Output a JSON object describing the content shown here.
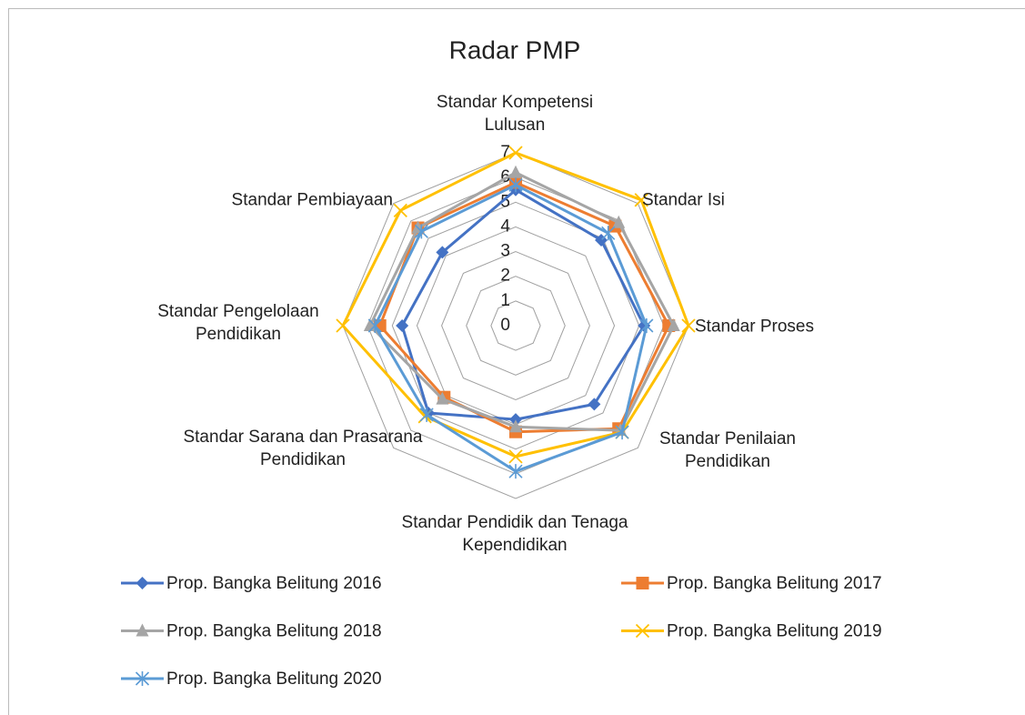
{
  "chart_data": {
    "type": "radar",
    "title": "Radar PMP",
    "categories": [
      "Standar Kompetensi Lulusan",
      "Standar Isi",
      "Standar Proses",
      "Standar Penilaian Pendidikan",
      "Standar Pendidik dan Tenaga Kependidikan",
      "Standar Sarana dan Prasarana Pendidikan",
      "Standar Pengelolaan Pendidikan",
      "Standar Pembiayaan"
    ],
    "series": [
      {
        "name": "Prop. Bangka Belitung 2016",
        "color": "#4472c4",
        "marker": "diamond",
        "values": [
          5.5,
          4.9,
          5.2,
          4.5,
          3.8,
          5.0,
          4.6,
          4.2
        ]
      },
      {
        "name": "Prop. Bangka Belitung 2017",
        "color": "#ed7d31",
        "marker": "square",
        "values": [
          5.8,
          5.7,
          6.2,
          5.9,
          4.3,
          4.1,
          5.5,
          5.6
        ]
      },
      {
        "name": "Prop. Bangka Belitung 2018",
        "color": "#a5a5a5",
        "marker": "triangle",
        "values": [
          6.2,
          5.9,
          6.4,
          6.0,
          4.1,
          4.2,
          5.9,
          5.6
        ]
      },
      {
        "name": "Prop. Bangka Belitung 2019",
        "color": "#ffc000",
        "marker": "x",
        "values": [
          7.0,
          7.2,
          7.0,
          6.1,
          5.3,
          5.2,
          7.0,
          6.6
        ]
      },
      {
        "name": "Prop. Bangka Belitung 2020",
        "color": "#5b9bd5",
        "marker": "star",
        "values": [
          5.7,
          5.3,
          5.3,
          6.1,
          5.9,
          5.1,
          5.7,
          5.4
        ]
      }
    ],
    "ylim": [
      0,
      7
    ],
    "yticks": [
      0,
      1,
      2,
      3,
      4,
      5,
      6,
      7
    ],
    "grid": true,
    "legend": "bottom"
  }
}
